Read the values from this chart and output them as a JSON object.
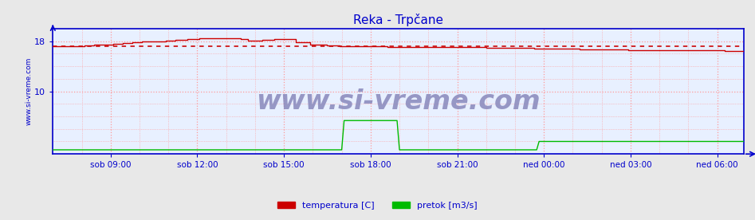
{
  "title": "Reka - Trpčane",
  "title_color": "#0000cc",
  "title_fontsize": 11,
  "bg_color": "#e8e8e8",
  "plot_bg_color": "#e8f0ff",
  "x_tick_labels": [
    "sob 09:00",
    "sob 12:00",
    "sob 15:00",
    "sob 18:00",
    "sob 21:00",
    "ned 00:00",
    "ned 03:00",
    "ned 06:00"
  ],
  "y_min": 0,
  "y_max": 20,
  "y_ticks": [
    10,
    18
  ],
  "grid_color": "#ff9999",
  "temp_color": "#cc0000",
  "temp_ref_color": "#cc0000",
  "pretok_color": "#00bb00",
  "watermark": "www.si-vreme.com",
  "watermark_color": "#8888bb",
  "watermark_fontsize": 24,
  "axis_color": "#0000cc",
  "ylabel_left": "www.si-vreme.com",
  "ylabel_color": "#0000cc",
  "legend_temp": "temperatura [C]",
  "legend_pretok": "pretok [m3/s]",
  "temp_ref_value": 17.2,
  "n_points": 288
}
